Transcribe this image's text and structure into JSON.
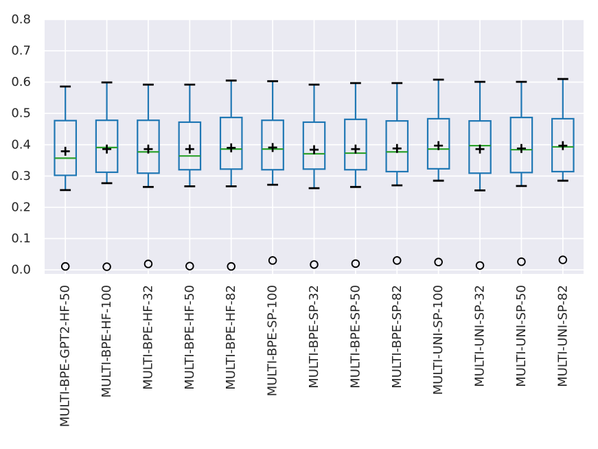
{
  "figure": {
    "background": "#ffffff",
    "axes_background": "#eaeaf2",
    "grid_color": "#ffffff",
    "text_color": "#262626"
  },
  "chart_data": {
    "type": "boxplot",
    "title": "",
    "xlabel": "",
    "ylabel": "",
    "grid": true,
    "legend": "none",
    "orientation": "vertical",
    "ylim": [
      -0.013,
      0.801
    ],
    "yticks": [
      0.0,
      0.1,
      0.2,
      0.3,
      0.4,
      0.5,
      0.6,
      0.7,
      0.8
    ],
    "ytick_labels": [
      "0.0",
      "0.1",
      "0.2",
      "0.3",
      "0.4",
      "0.5",
      "0.6",
      "0.7",
      "0.8"
    ],
    "categories": [
      "MULTI-BPE-GPT2-HF-50",
      "MULTI-BPE-HF-100",
      "MULTI-BPE-HF-32",
      "MULTI-BPE-HF-50",
      "MULTI-BPE-HF-82",
      "MULTI-BPE-SP-100",
      "MULTI-BPE-SP-32",
      "MULTI-BPE-SP-50",
      "MULTI-BPE-SP-82",
      "MULTI-UNI-SP-100",
      "MULTI-UNI-SP-32",
      "MULTI-UNI-SP-50",
      "MULTI-UNI-SP-82"
    ],
    "style": {
      "box_color": "#1f77b4",
      "whisker_color": "#1f77b4",
      "cap_color": "#000000",
      "median_color": "#2ca02c",
      "mean_marker": "+",
      "mean_color": "#000000",
      "flier_marker": "o",
      "flier_color": "#000000"
    },
    "boxes": [
      {
        "label": "MULTI-BPE-GPT2-HF-50",
        "whisker_low": 0.255,
        "q1": 0.302,
        "median": 0.357,
        "mean": 0.379,
        "q3": 0.477,
        "whisker_high": 0.586,
        "outliers": [
          0.011
        ]
      },
      {
        "label": "MULTI-BPE-HF-100",
        "whisker_low": 0.277,
        "q1": 0.312,
        "median": 0.391,
        "mean": 0.386,
        "q3": 0.478,
        "whisker_high": 0.599,
        "outliers": [
          0.01
        ]
      },
      {
        "label": "MULTI-BPE-HF-32",
        "whisker_low": 0.265,
        "q1": 0.309,
        "median": 0.377,
        "mean": 0.386,
        "q3": 0.478,
        "whisker_high": 0.592,
        "outliers": [
          0.019
        ]
      },
      {
        "label": "MULTI-BPE-HF-50",
        "whisker_low": 0.267,
        "q1": 0.32,
        "median": 0.364,
        "mean": 0.386,
        "q3": 0.472,
        "whisker_high": 0.592,
        "outliers": [
          0.012
        ]
      },
      {
        "label": "MULTI-BPE-HF-82",
        "whisker_low": 0.267,
        "q1": 0.322,
        "median": 0.386,
        "mean": 0.39,
        "q3": 0.487,
        "whisker_high": 0.605,
        "outliers": [
          0.011
        ]
      },
      {
        "label": "MULTI-BPE-SP-100",
        "whisker_low": 0.272,
        "q1": 0.32,
        "median": 0.386,
        "mean": 0.391,
        "q3": 0.478,
        "whisker_high": 0.603,
        "outliers": [
          0.03
        ]
      },
      {
        "label": "MULTI-BPE-SP-32",
        "whisker_low": 0.261,
        "q1": 0.322,
        "median": 0.371,
        "mean": 0.384,
        "q3": 0.472,
        "whisker_high": 0.592,
        "outliers": [
          0.017
        ]
      },
      {
        "label": "MULTI-BPE-SP-50",
        "whisker_low": 0.265,
        "q1": 0.32,
        "median": 0.373,
        "mean": 0.386,
        "q3": 0.481,
        "whisker_high": 0.597,
        "outliers": [
          0.02
        ]
      },
      {
        "label": "MULTI-BPE-SP-82",
        "whisker_low": 0.27,
        "q1": 0.314,
        "median": 0.377,
        "mean": 0.388,
        "q3": 0.476,
        "whisker_high": 0.597,
        "outliers": [
          0.03
        ]
      },
      {
        "label": "MULTI-UNI-SP-100",
        "whisker_low": 0.285,
        "q1": 0.323,
        "median": 0.386,
        "mean": 0.397,
        "q3": 0.483,
        "whisker_high": 0.608,
        "outliers": [
          0.025
        ]
      },
      {
        "label": "MULTI-UNI-SP-32",
        "whisker_low": 0.254,
        "q1": 0.309,
        "median": 0.397,
        "mean": 0.386,
        "q3": 0.476,
        "whisker_high": 0.601,
        "outliers": [
          0.014
        ]
      },
      {
        "label": "MULTI-UNI-SP-50",
        "whisker_low": 0.268,
        "q1": 0.311,
        "median": 0.384,
        "mean": 0.388,
        "q3": 0.487,
        "whisker_high": 0.601,
        "outliers": [
          0.026
        ]
      },
      {
        "label": "MULTI-UNI-SP-82",
        "whisker_low": 0.285,
        "q1": 0.314,
        "median": 0.393,
        "mean": 0.397,
        "q3": 0.483,
        "whisker_high": 0.61,
        "outliers": [
          0.032
        ]
      }
    ]
  }
}
